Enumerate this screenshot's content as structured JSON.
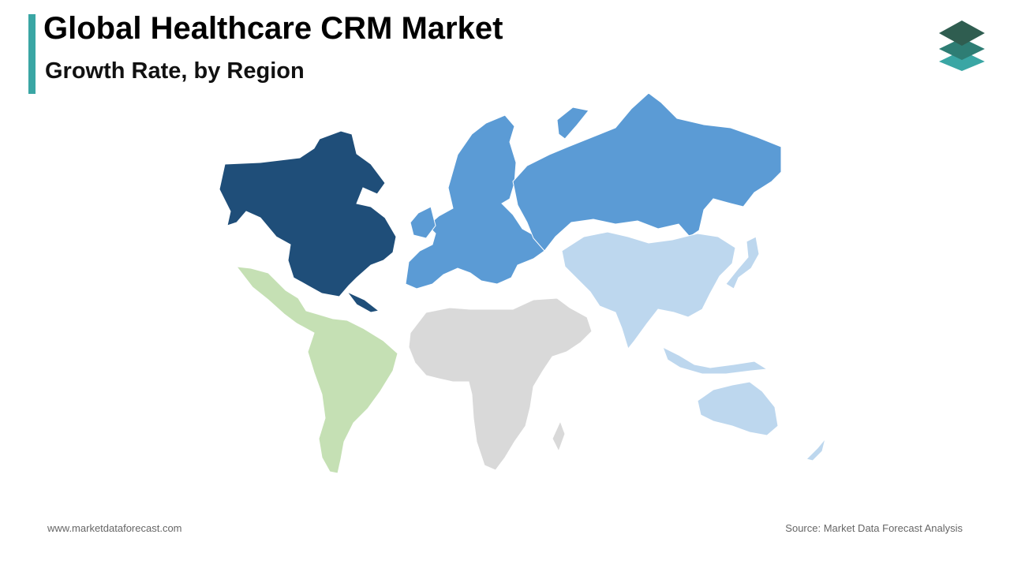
{
  "header": {
    "title": "Global Healthcare CRM Market",
    "subtitle": "Growth Rate, by Region",
    "accent_color": "#3aa6a4"
  },
  "logo": {
    "icon": "stacked-layers-logo"
  },
  "map": {
    "regions": [
      {
        "id": "north-america",
        "color": "#1f4e79"
      },
      {
        "id": "europe",
        "color": "#5b9bd5"
      },
      {
        "id": "asia-pacific",
        "color": "#bdd7ee"
      },
      {
        "id": "latin-america",
        "color": "#c5e0b4"
      },
      {
        "id": "middle-east-africa",
        "color": "#d9d9d9"
      }
    ]
  },
  "footer": {
    "website": "www.marketdataforecast.com",
    "source": "Source: Market Data Forecast Analysis"
  }
}
